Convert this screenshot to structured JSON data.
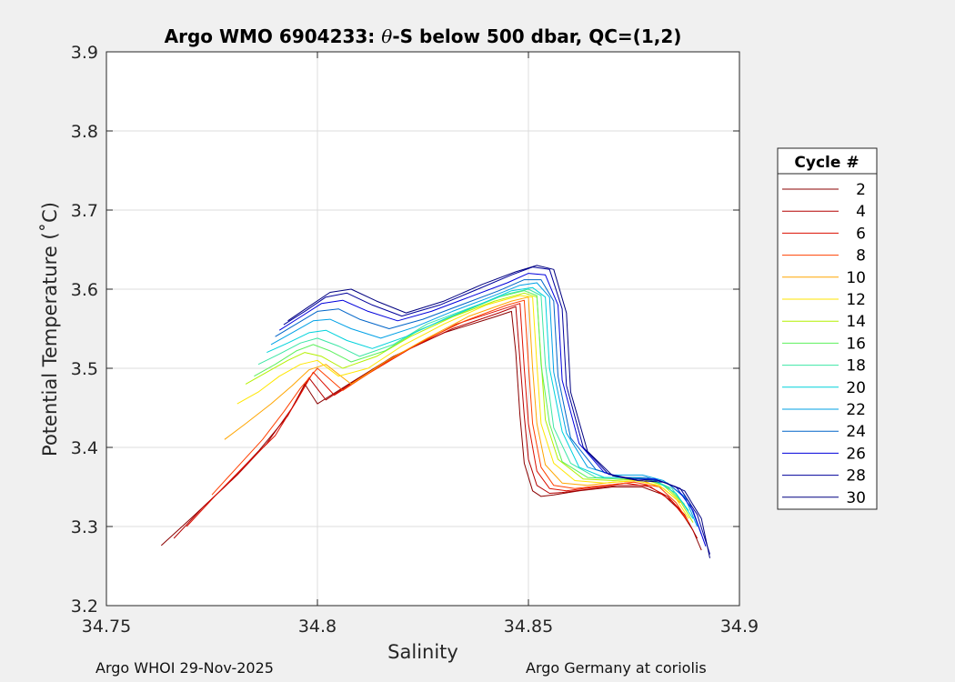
{
  "chart_data": {
    "type": "line",
    "title_prefix": "Argo WMO 6904233: ",
    "title_theta": "θ",
    "title_suffix": "-S below 500 dbar,  QC=(1,2)",
    "xlabel": "Salinity",
    "ylabel": "Potential Temperature (˚C)",
    "xlim": [
      34.75,
      34.9
    ],
    "ylim": [
      3.2,
      3.9
    ],
    "xticks": [
      34.75,
      34.8,
      34.85,
      34.9
    ],
    "xtick_labels": [
      "34.75",
      "34.8",
      "34.85",
      "34.9"
    ],
    "yticks": [
      3.2,
      3.3,
      3.4,
      3.5,
      3.6,
      3.7,
      3.8,
      3.9
    ],
    "ytick_labels": [
      "3.2",
      "3.3",
      "3.4",
      "3.5",
      "3.6",
      "3.7",
      "3.8",
      "3.9"
    ],
    "grid": true,
    "legend": {
      "title": "Cycle #",
      "position": "right",
      "entries": [
        {
          "label": "2",
          "color": "#8b0000"
        },
        {
          "label": "4",
          "color": "#b40000"
        },
        {
          "label": "6",
          "color": "#dc0f00"
        },
        {
          "label": "8",
          "color": "#ff4000"
        },
        {
          "label": "10",
          "color": "#ffa500"
        },
        {
          "label": "12",
          "color": "#ffe600"
        },
        {
          "label": "14",
          "color": "#b4f000"
        },
        {
          "label": "16",
          "color": "#5cf05c"
        },
        {
          "label": "18",
          "color": "#3ce6a5"
        },
        {
          "label": "20",
          "color": "#00d2dc"
        },
        {
          "label": "22",
          "color": "#00a0e6"
        },
        {
          "label": "24",
          "color": "#0064c8"
        },
        {
          "label": "26",
          "color": "#0000dc"
        },
        {
          "label": "28",
          "color": "#00009b"
        },
        {
          "label": "30",
          "color": "#000080"
        }
      ]
    },
    "series": [
      {
        "name": "2",
        "color": "#8b0000",
        "x": [
          34.763,
          34.77,
          34.778,
          34.786,
          34.793,
          34.797,
          34.8,
          34.808,
          34.818,
          34.83,
          34.842,
          34.846,
          34.847,
          34.848,
          34.849,
          34.851,
          34.853,
          34.856,
          34.862,
          34.87,
          34.877,
          34.882,
          34.886,
          34.889,
          34.891
        ],
        "y": [
          3.276,
          3.31,
          3.35,
          3.395,
          3.44,
          3.48,
          3.455,
          3.482,
          3.515,
          3.545,
          3.565,
          3.572,
          3.52,
          3.44,
          3.38,
          3.345,
          3.338,
          3.34,
          3.345,
          3.35,
          3.35,
          3.34,
          3.32,
          3.295,
          3.27
        ]
      },
      {
        "name": "4",
        "color": "#b40000",
        "x": [
          34.766,
          34.773,
          34.781,
          34.788,
          34.794,
          34.798,
          34.802,
          34.81,
          34.82,
          34.832,
          34.843,
          34.847,
          34.848,
          34.849,
          34.85,
          34.852,
          34.855,
          34.858,
          34.864,
          34.871,
          34.878,
          34.883,
          34.887,
          34.89
        ],
        "y": [
          3.285,
          3.325,
          3.365,
          3.405,
          3.45,
          3.488,
          3.46,
          3.488,
          3.52,
          3.55,
          3.57,
          3.578,
          3.51,
          3.44,
          3.385,
          3.352,
          3.342,
          3.343,
          3.347,
          3.352,
          3.352,
          3.338,
          3.315,
          3.285
        ]
      },
      {
        "name": "6",
        "color": "#dc0f00",
        "x": [
          34.769,
          34.776,
          34.783,
          34.79,
          34.795,
          34.799,
          34.804,
          34.812,
          34.822,
          34.833,
          34.844,
          34.848,
          34.849,
          34.85,
          34.852,
          34.855,
          34.859,
          34.866,
          34.873,
          34.879,
          34.884,
          34.888
        ],
        "y": [
          3.3,
          3.34,
          3.378,
          3.415,
          3.458,
          3.495,
          3.466,
          3.493,
          3.525,
          3.556,
          3.575,
          3.582,
          3.5,
          3.43,
          3.37,
          3.348,
          3.345,
          3.35,
          3.355,
          3.35,
          3.332,
          3.305
        ]
      },
      {
        "name": "8",
        "color": "#ff4000",
        "x": [
          34.775,
          34.781,
          34.787,
          34.792,
          34.796,
          34.8,
          34.806,
          34.814,
          34.824,
          34.835,
          34.845,
          34.849,
          34.85,
          34.851,
          34.853,
          34.856,
          34.861,
          34.868,
          34.875,
          34.881,
          34.885,
          34.888
        ],
        "y": [
          3.34,
          3.375,
          3.41,
          3.445,
          3.475,
          3.5,
          3.472,
          3.5,
          3.532,
          3.56,
          3.58,
          3.586,
          3.505,
          3.43,
          3.375,
          3.352,
          3.348,
          3.352,
          3.356,
          3.35,
          3.33,
          3.305
        ]
      },
      {
        "name": "10",
        "color": "#ffa500",
        "x": [
          34.778,
          34.783,
          34.789,
          34.794,
          34.798,
          34.802,
          34.808,
          34.816,
          34.826,
          34.836,
          34.846,
          34.85,
          34.851,
          34.852,
          34.854,
          34.858,
          34.864,
          34.87,
          34.877,
          34.882,
          34.886
        ],
        "y": [
          3.41,
          3.43,
          3.455,
          3.478,
          3.498,
          3.505,
          3.48,
          3.508,
          3.538,
          3.566,
          3.585,
          3.59,
          3.5,
          3.43,
          3.378,
          3.355,
          3.352,
          3.356,
          3.358,
          3.348,
          3.33
        ]
      },
      {
        "name": "12",
        "color": "#ffe600",
        "x": [
          34.781,
          34.786,
          34.791,
          34.796,
          34.8,
          34.805,
          34.812,
          34.82,
          34.83,
          34.84,
          34.848,
          34.851,
          34.852,
          34.853,
          34.856,
          34.861,
          34.868,
          34.875,
          34.881,
          34.885,
          34.888
        ],
        "y": [
          3.455,
          3.47,
          3.49,
          3.505,
          3.51,
          3.49,
          3.5,
          3.528,
          3.556,
          3.58,
          3.592,
          3.59,
          3.505,
          3.43,
          3.38,
          3.358,
          3.355,
          3.358,
          3.352,
          3.335,
          3.31
        ]
      },
      {
        "name": "14",
        "color": "#b4f000",
        "x": [
          34.783,
          34.788,
          34.793,
          34.797,
          34.801,
          34.806,
          34.814,
          34.822,
          34.832,
          34.842,
          34.849,
          34.852,
          34.853,
          34.854,
          34.857,
          34.863,
          34.87,
          34.877,
          34.882,
          34.886,
          34.889
        ],
        "y": [
          3.48,
          3.495,
          3.51,
          3.52,
          3.515,
          3.5,
          3.515,
          3.54,
          3.565,
          3.585,
          3.595,
          3.59,
          3.51,
          3.435,
          3.385,
          3.36,
          3.358,
          3.36,
          3.352,
          3.332,
          3.305
        ]
      },
      {
        "name": "16",
        "color": "#5cf05c",
        "x": [
          34.785,
          34.79,
          34.795,
          34.799,
          34.803,
          34.808,
          34.816,
          34.824,
          34.834,
          34.843,
          34.849,
          34.852,
          34.853,
          34.855,
          34.858,
          34.864,
          34.871,
          34.878,
          34.883,
          34.887
        ],
        "y": [
          3.49,
          3.505,
          3.522,
          3.53,
          3.522,
          3.508,
          3.522,
          3.548,
          3.57,
          3.59,
          3.598,
          3.592,
          3.505,
          3.43,
          3.382,
          3.362,
          3.36,
          3.36,
          3.35,
          3.328
        ]
      },
      {
        "name": "18",
        "color": "#3ce6a5",
        "x": [
          34.786,
          34.791,
          34.796,
          34.8,
          34.805,
          34.81,
          34.818,
          34.826,
          34.836,
          34.845,
          34.85,
          34.853,
          34.854,
          34.856,
          34.86,
          34.866,
          34.873,
          34.879,
          34.884,
          34.888
        ],
        "y": [
          3.505,
          3.518,
          3.532,
          3.538,
          3.528,
          3.515,
          3.53,
          3.556,
          3.576,
          3.594,
          3.6,
          3.592,
          3.505,
          3.425,
          3.38,
          3.362,
          3.362,
          3.36,
          3.348,
          3.32
        ]
      },
      {
        "name": "20",
        "color": "#00d2dc",
        "x": [
          34.788,
          34.793,
          34.798,
          34.802,
          34.807,
          34.813,
          34.821,
          34.83,
          34.839,
          34.846,
          34.851,
          34.854,
          34.855,
          34.858,
          34.862,
          34.868,
          34.875,
          34.88,
          34.885,
          34.889
        ],
        "y": [
          3.52,
          3.532,
          3.545,
          3.548,
          3.535,
          3.525,
          3.54,
          3.562,
          3.582,
          3.598,
          3.602,
          3.59,
          3.5,
          3.42,
          3.375,
          3.362,
          3.362,
          3.358,
          3.342,
          3.31
        ]
      },
      {
        "name": "22",
        "color": "#00a0e6",
        "x": [
          34.789,
          34.794,
          34.799,
          34.803,
          34.808,
          34.815,
          34.823,
          34.832,
          34.841,
          34.848,
          34.852,
          34.855,
          34.856,
          34.859,
          34.864,
          34.87,
          34.877,
          34.882,
          34.887,
          34.89
        ],
        "y": [
          3.53,
          3.545,
          3.56,
          3.562,
          3.55,
          3.538,
          3.552,
          3.572,
          3.59,
          3.605,
          3.608,
          3.59,
          3.495,
          3.418,
          3.375,
          3.365,
          3.365,
          3.358,
          3.338,
          3.3
        ]
      },
      {
        "name": "24",
        "color": "#0064c8",
        "x": [
          34.79,
          34.795,
          34.8,
          34.805,
          34.81,
          34.817,
          34.825,
          34.834,
          34.843,
          34.849,
          34.853,
          34.856,
          34.857,
          34.86,
          34.866,
          34.872,
          34.878,
          34.883,
          34.888,
          34.891
        ],
        "y": [
          3.54,
          3.556,
          3.572,
          3.575,
          3.562,
          3.55,
          3.562,
          3.58,
          3.598,
          3.612,
          3.612,
          3.585,
          3.49,
          3.412,
          3.372,
          3.362,
          3.362,
          3.355,
          3.332,
          3.29
        ]
      },
      {
        "name": "26",
        "color": "#0000dc",
        "x": [
          34.791,
          34.796,
          34.801,
          34.806,
          34.812,
          34.819,
          34.827,
          34.836,
          34.845,
          34.85,
          34.854,
          34.857,
          34.858,
          34.862,
          34.868,
          34.874,
          34.88,
          34.885,
          34.889,
          34.892
        ],
        "y": [
          3.548,
          3.565,
          3.582,
          3.586,
          3.572,
          3.56,
          3.572,
          3.59,
          3.608,
          3.62,
          3.618,
          3.58,
          3.485,
          3.405,
          3.368,
          3.36,
          3.36,
          3.35,
          3.32,
          3.275
        ]
      },
      {
        "name": "28",
        "color": "#00009b",
        "x": [
          34.792,
          34.797,
          34.802,
          34.807,
          34.813,
          34.82,
          34.829,
          34.838,
          34.846,
          34.851,
          34.855,
          34.858,
          34.859,
          34.863,
          34.869,
          34.875,
          34.881,
          34.886,
          34.89,
          34.893
        ],
        "y": [
          3.555,
          3.572,
          3.59,
          3.595,
          3.58,
          3.566,
          3.58,
          3.6,
          3.618,
          3.628,
          3.625,
          3.575,
          3.478,
          3.4,
          3.366,
          3.36,
          3.358,
          3.348,
          3.315,
          3.265
        ]
      },
      {
        "name": "30",
        "color": "#000080",
        "x": [
          34.793,
          34.798,
          34.803,
          34.808,
          34.814,
          34.821,
          34.83,
          34.839,
          34.847,
          34.852,
          34.856,
          34.859,
          34.86,
          34.864,
          34.87,
          34.876,
          34.882,
          34.887,
          34.891,
          34.893
        ],
        "y": [
          3.56,
          3.578,
          3.596,
          3.6,
          3.585,
          3.57,
          3.585,
          3.606,
          3.622,
          3.63,
          3.625,
          3.57,
          3.47,
          3.395,
          3.364,
          3.358,
          3.356,
          3.345,
          3.31,
          3.26
        ]
      }
    ]
  },
  "footer": {
    "left": "Argo WHOI 29-Nov-2025",
    "right": "Argo Germany at coriolis"
  }
}
